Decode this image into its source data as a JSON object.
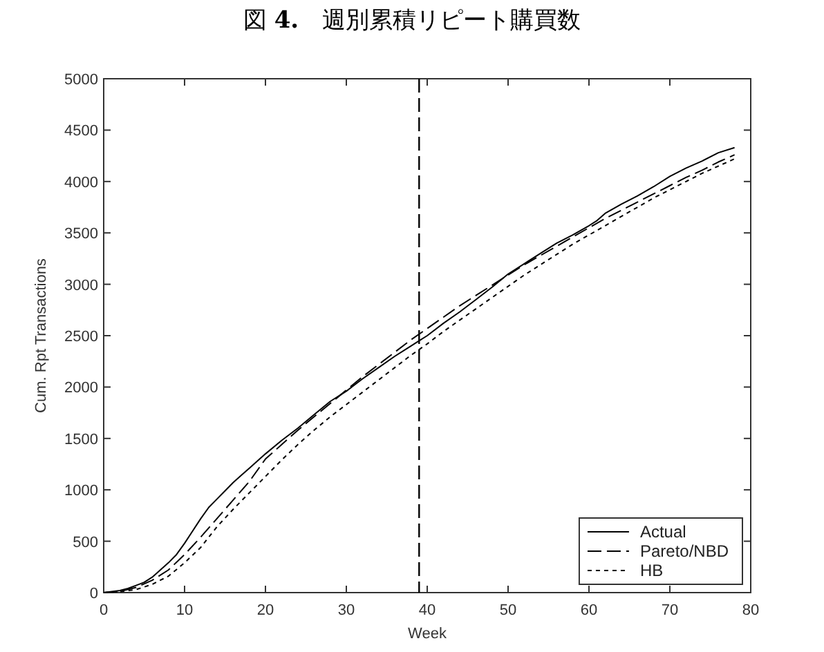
{
  "chart_data": {
    "type": "line",
    "title": "図 4.　週別累積リピート購買数",
    "xlabel": "Week",
    "ylabel": "Cum. Rpt Transactions",
    "xlim": [
      0,
      80
    ],
    "xticks": [
      0,
      10,
      20,
      30,
      40,
      50,
      60,
      70,
      80
    ],
    "ylim": [
      0,
      5000
    ],
    "yticks": [
      0,
      500,
      1000,
      1500,
      2000,
      2500,
      3000,
      3500,
      4000,
      4500,
      5000
    ],
    "legend": "bottom right",
    "ref_lines": [
      {
        "axis": "x",
        "value": 39,
        "color": "#000000",
        "line_style": "dashed"
      }
    ],
    "series": [
      {
        "name": "Actual",
        "color": "#000000",
        "line_style": "solid",
        "x": [
          0,
          2,
          3,
          4,
          5,
          6,
          7,
          8,
          9,
          10,
          11,
          12,
          13,
          14,
          15,
          16,
          17,
          18,
          19,
          20,
          22,
          24,
          26,
          28,
          30,
          32,
          34,
          36,
          38,
          39,
          40,
          42,
          44,
          46,
          48,
          50,
          52,
          54,
          56,
          58,
          60,
          61,
          62,
          64,
          66,
          68,
          70,
          72,
          74,
          76,
          78
        ],
        "values": [
          0,
          20,
          40,
          70,
          100,
          150,
          220,
          290,
          370,
          480,
          600,
          720,
          830,
          910,
          990,
          1070,
          1140,
          1210,
          1280,
          1350,
          1480,
          1600,
          1730,
          1860,
          1960,
          2080,
          2190,
          2300,
          2400,
          2450,
          2500,
          2620,
          2730,
          2850,
          2970,
          3100,
          3200,
          3300,
          3400,
          3480,
          3570,
          3620,
          3690,
          3780,
          3860,
          3950,
          4050,
          4130,
          4200,
          4280,
          4330
        ]
      },
      {
        "name": "Pareto/NBD",
        "color": "#000000",
        "line_style": "dashed",
        "x": [
          0,
          2,
          4,
          6,
          8,
          10,
          12,
          14,
          16,
          18,
          20,
          22,
          24,
          26,
          28,
          30,
          32,
          34,
          36,
          38,
          40,
          42,
          44,
          46,
          48,
          50,
          52,
          54,
          56,
          58,
          60,
          62,
          64,
          66,
          68,
          70,
          72,
          74,
          76,
          78
        ],
        "values": [
          0,
          10,
          50,
          120,
          220,
          370,
          540,
          720,
          900,
          1080,
          1300,
          1440,
          1580,
          1710,
          1840,
          1970,
          2100,
          2220,
          2340,
          2460,
          2570,
          2680,
          2790,
          2890,
          2990,
          3090,
          3190,
          3280,
          3370,
          3460,
          3550,
          3640,
          3720,
          3800,
          3880,
          3960,
          4040,
          4110,
          4190,
          4260
        ]
      },
      {
        "name": "HB",
        "color": "#000000",
        "line_style": "dotted",
        "x": [
          0,
          2,
          4,
          6,
          8,
          10,
          12,
          14,
          16,
          18,
          20,
          22,
          24,
          26,
          28,
          30,
          32,
          34,
          36,
          38,
          40,
          42,
          44,
          46,
          48,
          50,
          52,
          54,
          56,
          58,
          60,
          62,
          64,
          66,
          68,
          70,
          72,
          74,
          76,
          78
        ],
        "values": [
          0,
          10,
          30,
          80,
          160,
          290,
          440,
          640,
          810,
          970,
          1130,
          1290,
          1440,
          1580,
          1710,
          1830,
          1950,
          2070,
          2190,
          2310,
          2420,
          2540,
          2650,
          2760,
          2870,
          2980,
          3090,
          3190,
          3290,
          3390,
          3480,
          3570,
          3660,
          3750,
          3840,
          3920,
          4000,
          4080,
          4150,
          4220
        ]
      }
    ]
  }
}
